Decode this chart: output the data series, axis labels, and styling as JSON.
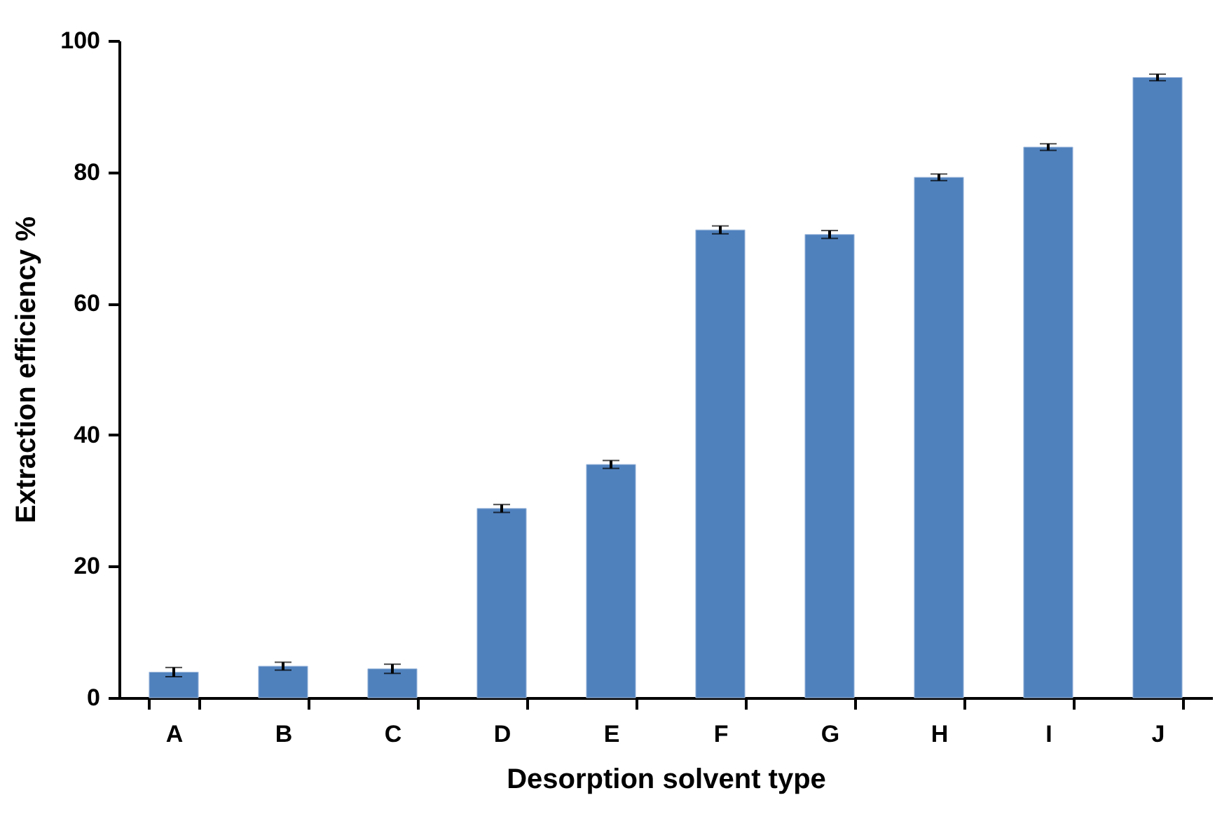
{
  "chart_data": {
    "type": "bar",
    "xlabel": "Desorption solvent type",
    "ylabel": "Extraction efficiency %",
    "categories": [
      "A",
      "B",
      "C",
      "D",
      "E",
      "F",
      "G",
      "H",
      "I",
      "J"
    ],
    "values": [
      3.9,
      4.8,
      4.4,
      28.8,
      35.5,
      71.2,
      70.5,
      79.2,
      83.8,
      94.4
    ],
    "errors": [
      0.7,
      0.6,
      0.7,
      0.6,
      0.6,
      0.6,
      0.6,
      0.5,
      0.5,
      0.5
    ],
    "color": "#4f81bd",
    "ylim": [
      0,
      100
    ],
    "yticks": [
      0,
      20,
      40,
      60,
      80,
      100
    ],
    "grid": false
  }
}
